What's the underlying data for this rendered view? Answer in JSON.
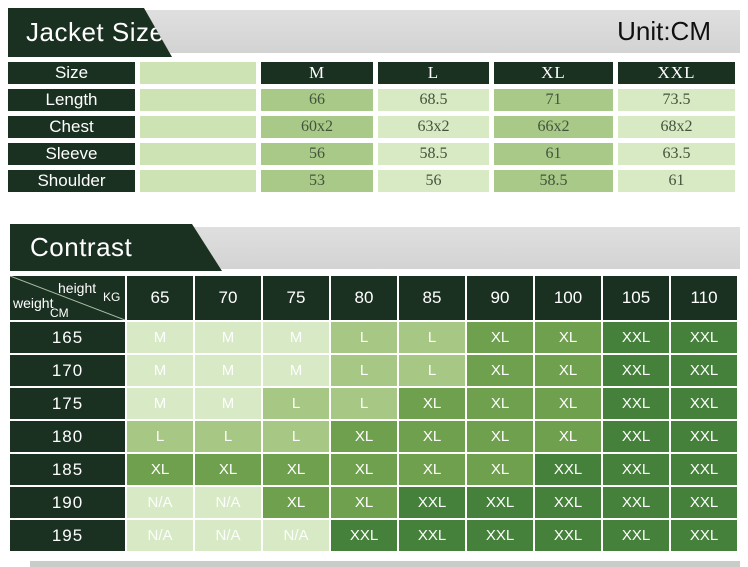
{
  "unit_label": "Unit:CM",
  "chart_data": [
    {
      "type": "table",
      "title": "Jacket Size",
      "corner_label": "Size",
      "columns": [
        "M",
        "L",
        "XL",
        "XXL"
      ],
      "rows": [
        {
          "label": "Length",
          "values": [
            "66",
            "68.5",
            "71",
            "73.5"
          ]
        },
        {
          "label": "Chest",
          "values": [
            "60x2",
            "63x2",
            "66x2",
            "68x2"
          ]
        },
        {
          "label": "Sleeve",
          "values": [
            "56",
            "58.5",
            "61",
            "63.5"
          ]
        },
        {
          "label": "Shoulder",
          "values": [
            "53",
            "56",
            "58.5",
            "61"
          ]
        }
      ]
    },
    {
      "type": "table",
      "title": "Contrast",
      "corner": {
        "axis_top": "height",
        "axis_top_unit": "KG",
        "axis_bottom": "weight",
        "axis_bottom_unit": "CM"
      },
      "columns": [
        "65",
        "70",
        "75",
        "80",
        "85",
        "90",
        "100",
        "105",
        "110"
      ],
      "rows": [
        {
          "label": "165",
          "values": [
            "M",
            "M",
            "M",
            "L",
            "L",
            "XL",
            "XL",
            "XXL",
            "XXL"
          ]
        },
        {
          "label": "170",
          "values": [
            "M",
            "M",
            "M",
            "L",
            "L",
            "XL",
            "XL",
            "XXL",
            "XXL"
          ]
        },
        {
          "label": "175",
          "values": [
            "M",
            "M",
            "L",
            "L",
            "XL",
            "XL",
            "XL",
            "XXL",
            "XXL"
          ]
        },
        {
          "label": "180",
          "values": [
            "L",
            "L",
            "L",
            "XL",
            "XL",
            "XL",
            "XL",
            "XXL",
            "XXL"
          ]
        },
        {
          "label": "185",
          "values": [
            "XL",
            "XL",
            "XL",
            "XL",
            "XL",
            "XL",
            "XXL",
            "XXL",
            "XXL"
          ]
        },
        {
          "label": "190",
          "values": [
            "N/A",
            "N/A",
            "XL",
            "XL",
            "XXL",
            "XXL",
            "XXL",
            "XXL",
            "XXL"
          ]
        },
        {
          "label": "195",
          "values": [
            "N/A",
            "N/A",
            "N/A",
            "XXL",
            "XXL",
            "XXL",
            "XXL",
            "XXL",
            "XXL"
          ]
        }
      ]
    }
  ],
  "colors": {
    "header_dark_green": "#1a3020",
    "banner_gray": "#d8d8d8",
    "cell_blank_green": "#cee3b3",
    "cell_light_green": "#d8eac4",
    "cell_medium_green": "#a9c988",
    "cell_xl_green": "#6fa04e",
    "cell_xxl_green": "#46813b",
    "value_text_green": "#42543c"
  }
}
